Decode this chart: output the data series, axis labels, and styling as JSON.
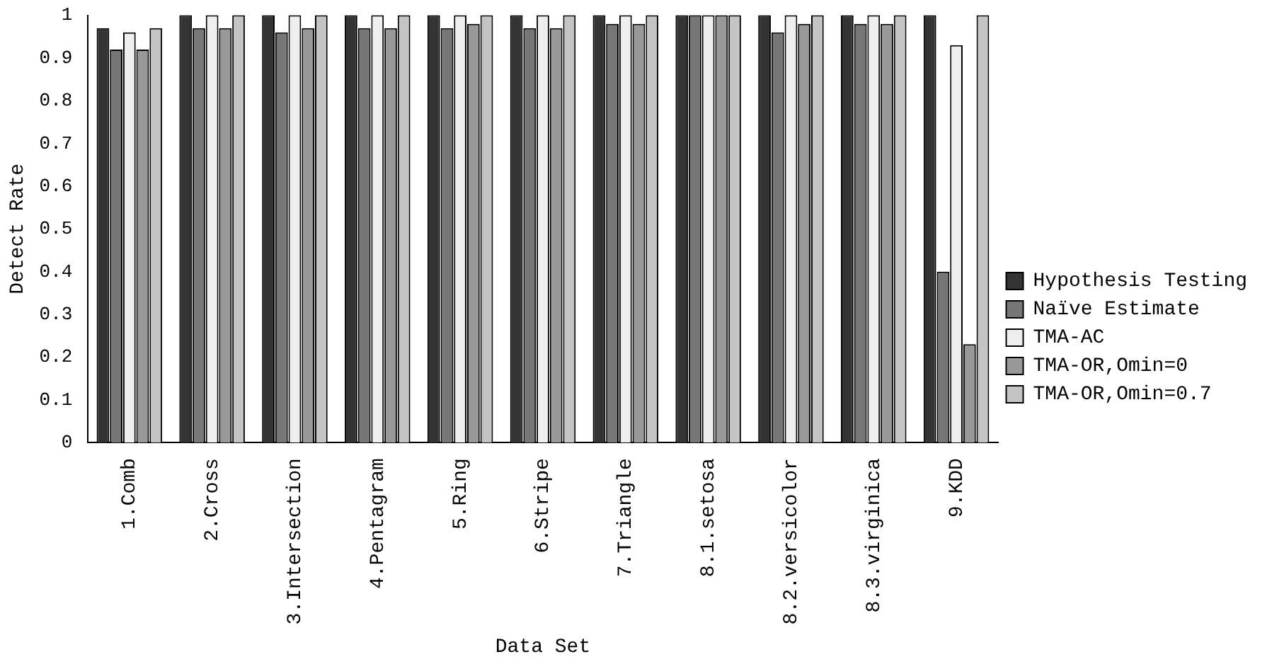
{
  "chart_data": {
    "type": "bar",
    "xlabel": "Data Set",
    "ylabel": "Detect Rate",
    "categories": [
      "1.Comb",
      "2.Cross",
      "3.Intersection",
      "4.Pentagram",
      "5.Ring",
      "6.Stripe",
      "7.Triangle",
      "8.1.setosa",
      "8.2.versicolor",
      "8.3.virginica",
      "9.KDD"
    ],
    "series": [
      {
        "name": "Hypothesis Testing",
        "color": "#333333",
        "values": [
          0.97,
          1,
          1,
          1,
          1,
          1,
          1,
          1,
          1,
          1,
          1
        ]
      },
      {
        "name": "Naïve Estimate",
        "color": "#777777",
        "values": [
          0.92,
          0.97,
          0.96,
          0.97,
          0.97,
          0.97,
          0.98,
          1,
          0.96,
          0.98,
          0.4
        ]
      },
      {
        "name": "TMA-AC",
        "color": "#eeeeee",
        "values": [
          0.96,
          1,
          1,
          1,
          1,
          1,
          1,
          1,
          1,
          1,
          0.93
        ]
      },
      {
        "name": "TMA-OR,Omin=0",
        "color": "#999999",
        "values": [
          0.92,
          0.97,
          0.97,
          0.97,
          0.98,
          0.97,
          0.98,
          1,
          0.98,
          0.98,
          0.23
        ]
      },
      {
        "name": "TMA-OR,Omin=0.7",
        "color": "#c4c4c4",
        "values": [
          0.97,
          1,
          1,
          1,
          1,
          1,
          1,
          1,
          1,
          1,
          1
        ]
      }
    ],
    "ylim": [
      0,
      1
    ],
    "yticks": [
      0,
      0.1,
      0.2,
      0.3,
      0.4,
      0.5,
      0.6,
      0.7,
      0.8,
      0.9,
      1
    ],
    "legend": "right"
  }
}
